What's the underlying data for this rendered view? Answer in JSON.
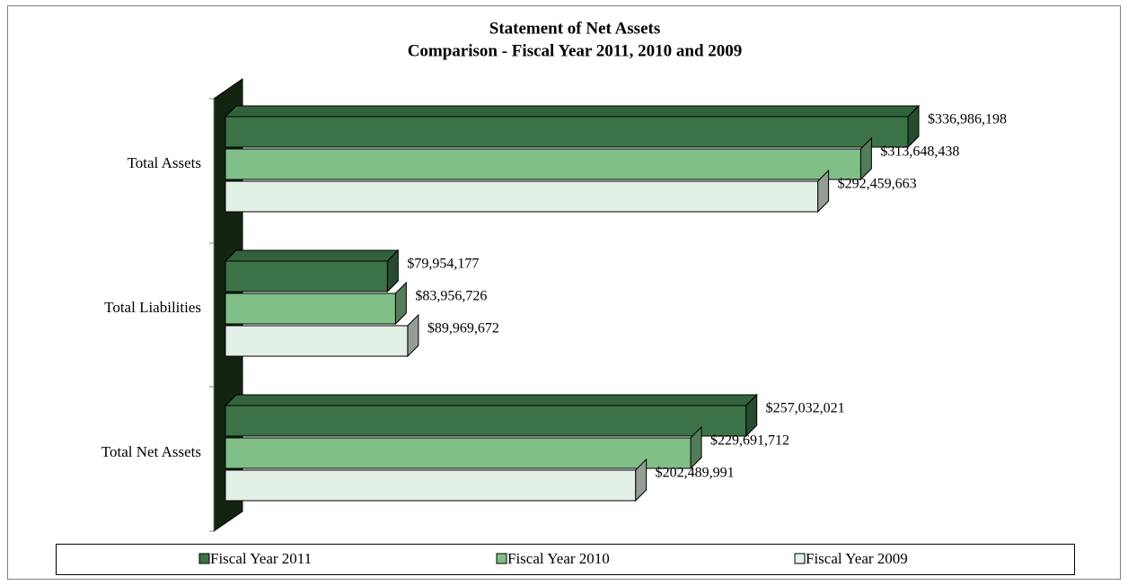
{
  "chart_data": {
    "type": "bar",
    "orientation": "horizontal",
    "title": "Statement of Net Assets",
    "subtitle": "Comparison - Fiscal Year 2011, 2010 and 2009",
    "categories": [
      "Total Assets",
      "Total Liabilities",
      "Total Net Assets"
    ],
    "series": [
      {
        "name": "Fiscal Year 2011",
        "color": "#3b7346",
        "values": [
          336986198,
          79954177,
          257032021
        ],
        "value_labels": [
          "$336,986,198",
          "$79,954,177",
          "$257,032,021"
        ]
      },
      {
        "name": "Fiscal Year 2010",
        "color": "#80bf88",
        "values": [
          313648438,
          83956726,
          229691712
        ],
        "value_labels": [
          "$313,648,438",
          "$83,956,726",
          "$229,691,712"
        ]
      },
      {
        "name": "Fiscal Year 2009",
        "color": "#e3f0e5",
        "values": [
          292459663,
          89969672,
          202489991
        ],
        "value_labels": [
          "$292,459,663",
          "$89,969,672",
          "$202,489,991"
        ]
      }
    ],
    "legend": "bottom"
  }
}
